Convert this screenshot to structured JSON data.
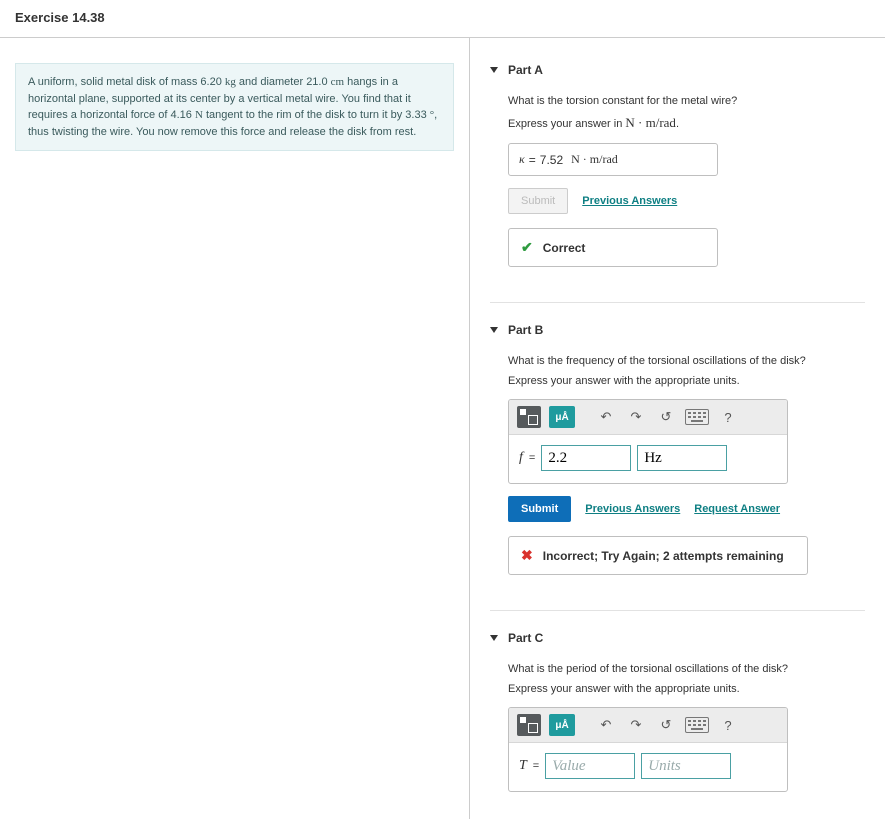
{
  "header": {
    "title": "Exercise 14.38"
  },
  "problem": {
    "segments": [
      {
        "t": "A uniform, solid metal disk of mass 6.20 "
      },
      {
        "t": "kg",
        "cls": "serif"
      },
      {
        "t": " and diameter 21.0 "
      },
      {
        "t": "cm",
        "cls": "serif"
      },
      {
        "t": " hangs in a horizontal plane, supported at its center by a vertical metal wire. You find that it requires a horizontal force of 4.16 "
      },
      {
        "t": "N",
        "cls": "serif"
      },
      {
        "t": " tangent to the rim of the disk to turn it by 3.33 "
      },
      {
        "t": "°",
        "cls": "serif"
      },
      {
        "t": ", thus twisting the wire. You now remove this force and release the disk from rest."
      }
    ]
  },
  "links": {
    "previous_answers": "Previous Answers",
    "request_answer": "Request Answer"
  },
  "buttons": {
    "submit": "Submit"
  },
  "toolbar": {
    "mu_a": "μÅ",
    "undo": "↶",
    "redo": "↷",
    "reset": "↺",
    "help": "?"
  },
  "partA": {
    "title": "Part A",
    "question": "What is the torsion constant for the metal wire?",
    "instruction_pre": "Express your answer in ",
    "instruction_unit": "N · m/rad",
    "var": "κ",
    "equals": "=",
    "value": "7.52",
    "unit_display": "N · m/rad",
    "feedback": "Correct"
  },
  "partB": {
    "title": "Part B",
    "question": "What is the frequency of the torsional oscillations of the disk?",
    "instruction": "Express your answer with the appropriate units.",
    "var": "f",
    "equals": "=",
    "value": "2.2",
    "unit": "Hz",
    "feedback": "Incorrect; Try Again; 2 attempts remaining"
  },
  "partC": {
    "title": "Part C",
    "question": "What is the period of the torsional oscillations of the disk?",
    "instruction": "Express your answer with the appropriate units.",
    "var": "T",
    "equals": "=",
    "value_placeholder": "Value",
    "unit_placeholder": "Units"
  }
}
